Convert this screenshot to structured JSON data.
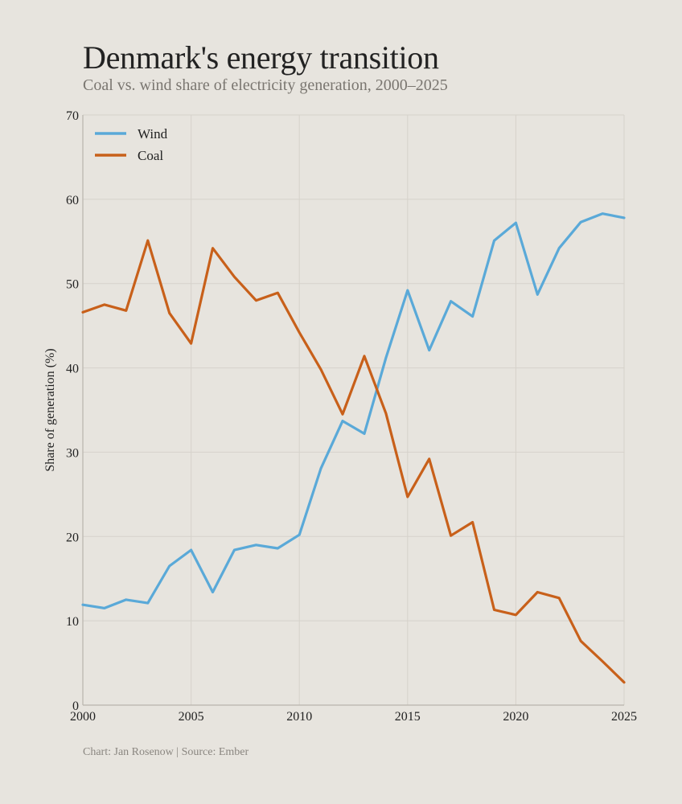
{
  "chart_data": {
    "type": "line",
    "title": "Denmark's energy transition",
    "subtitle": "Coal vs. wind share of electricity generation, 2000–2025",
    "xlabel": "",
    "ylabel": "Share of generation (%)",
    "xlim": [
      2000,
      2025
    ],
    "ylim": [
      0,
      70
    ],
    "xticks": [
      2000,
      2005,
      2010,
      2015,
      2020,
      2025
    ],
    "yticks": [
      0,
      10,
      20,
      30,
      40,
      50,
      60,
      70
    ],
    "grid": true,
    "legend_position": "top-left",
    "x": [
      2000,
      2001,
      2002,
      2003,
      2004,
      2005,
      2006,
      2007,
      2008,
      2009,
      2010,
      2011,
      2012,
      2013,
      2014,
      2015,
      2016,
      2017,
      2018,
      2019,
      2020,
      2021,
      2022,
      2023,
      2024,
      2025
    ],
    "series": [
      {
        "name": "Wind",
        "color": "#5aa9d8",
        "values": [
          11.9,
          11.5,
          12.5,
          12.1,
          16.5,
          18.4,
          13.4,
          18.4,
          19.0,
          18.6,
          20.2,
          28.1,
          33.7,
          32.2,
          41.2,
          49.2,
          42.1,
          47.9,
          46.1,
          55.1,
          57.2,
          48.7,
          54.2,
          57.3,
          58.3,
          57.8
        ]
      },
      {
        "name": "Coal",
        "color": "#c8601a",
        "values": [
          46.6,
          47.5,
          46.8,
          55.1,
          46.5,
          42.9,
          54.2,
          50.8,
          48.0,
          48.9,
          44.2,
          39.8,
          34.5,
          41.4,
          34.6,
          24.7,
          29.2,
          20.1,
          21.7,
          11.3,
          10.7,
          13.4,
          12.7,
          7.6,
          5.2,
          2.7
        ]
      }
    ],
    "footer": "Chart: Jan Rosenow | Source: Ember"
  }
}
